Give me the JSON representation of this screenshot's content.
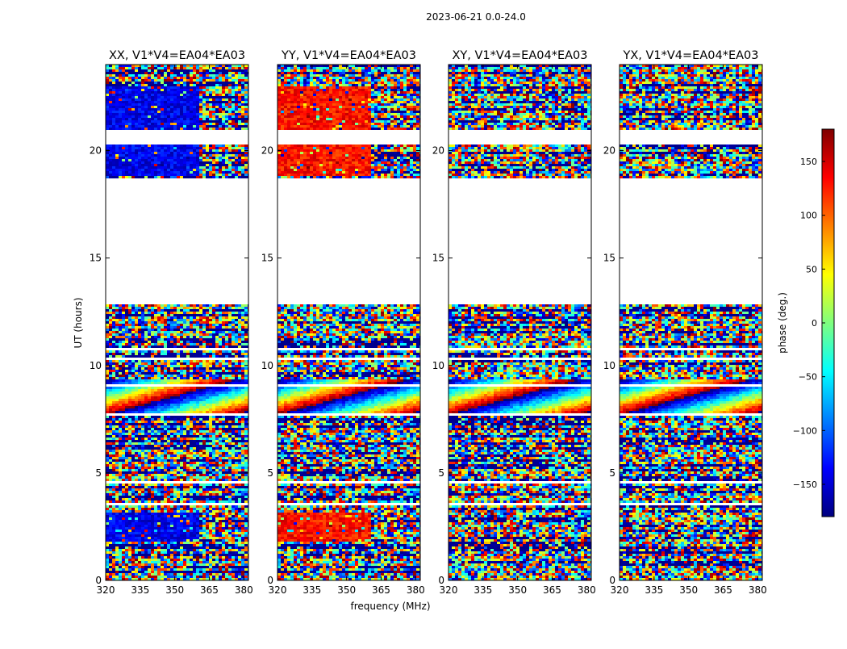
{
  "figure": {
    "suptitle": "2023-06-21 0.0-24.0",
    "xlabel": "frequency (MHz)",
    "ylabel": "UT (hours)"
  },
  "colorbar": {
    "label": "phase (deg.)",
    "range": [
      -180,
      180
    ],
    "ticks": [
      -150,
      -100,
      -50,
      0,
      50,
      100,
      150
    ],
    "tick_labels": [
      "−150",
      "−100",
      "−50",
      "0",
      "50",
      "100",
      "150"
    ],
    "colormap": "jet",
    "colors": [
      "#00007f",
      "#0000ff",
      "#007fff",
      "#00ffff",
      "#7fff7f",
      "#ffff00",
      "#ff7f00",
      "#ff0000",
      "#7f0000"
    ]
  },
  "chart_data": {
    "type": "heatmap",
    "x_range": [
      320,
      382
    ],
    "y_range": [
      0,
      24
    ],
    "xticks": [
      320,
      335,
      350,
      365,
      380
    ],
    "yticks": [
      0,
      5,
      10,
      15,
      20
    ],
    "data_gap_hours": [
      [
        12.8,
        18.7
      ],
      [
        20.3,
        21.0
      ]
    ],
    "panels": [
      {
        "title": "XX, V1*V4=EA04*EA03",
        "coherent_phase_deg": -140
      },
      {
        "title": "YY, V1*V4=EA04*EA03",
        "coherent_phase_deg": 130
      },
      {
        "title": "XY, V1*V4=EA04*EA03",
        "coherent_phase_deg": null
      },
      {
        "title": "YX, V1*V4=EA04*EA03",
        "coherent_phase_deg": null
      }
    ]
  }
}
